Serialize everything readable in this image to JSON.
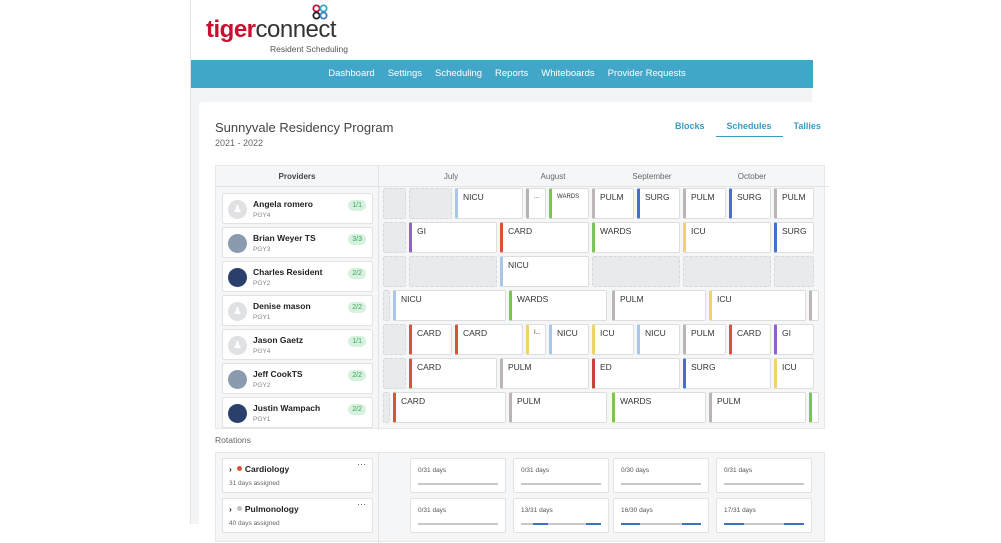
{
  "brand": {
    "name_a": "tiger",
    "name_b": "connect",
    "subtitle": "Resident Scheduling"
  },
  "nav": [
    "Dashboard",
    "Settings",
    "Scheduling",
    "Reports",
    "Whiteboards",
    "Provider Requests"
  ],
  "page": {
    "title": "Sunnyvale Residency Program",
    "years": "2021 - 2022"
  },
  "tabs": [
    {
      "label": "Blocks",
      "active": false
    },
    {
      "label": "Schedules",
      "active": true
    },
    {
      "label": "Tallies",
      "active": false
    }
  ],
  "schedule": {
    "providers_header": "Providers",
    "months": [
      "July",
      "August",
      "September",
      "October"
    ],
    "providers": [
      {
        "name": "Angela romero",
        "pgy": "PGY4",
        "badge": "1/1",
        "avatar": "placeholder"
      },
      {
        "name": "Brian Weyer TS",
        "pgy": "PGY3",
        "badge": "3/3",
        "avatar": "photo"
      },
      {
        "name": "Charles Resident",
        "pgy": "PGY2",
        "badge": "2/2",
        "avatar": "photo"
      },
      {
        "name": "Denise mason",
        "pgy": "PGY1",
        "badge": "2/2",
        "avatar": "placeholder"
      },
      {
        "name": "Jason Gaetz",
        "pgy": "PGY4",
        "badge": "1/1",
        "avatar": "placeholder"
      },
      {
        "name": "Jeff CookTS",
        "pgy": "PGY2",
        "badge": "2/2",
        "avatar": "photo"
      },
      {
        "name": "Justin Wampach",
        "pgy": "PGY1",
        "badge": "2/2",
        "avatar": "photo"
      }
    ],
    "rows": [
      [
        "",
        "",
        "NICU",
        "...",
        "WARDS",
        "PULM",
        "SURG",
        "PULM",
        "SURG",
        "PULM"
      ],
      [
        "",
        "GI",
        "CARD",
        "WARDS",
        "ICU",
        "SURG"
      ],
      [
        "",
        "",
        "NICU",
        "",
        "",
        ""
      ],
      [
        "",
        "NICU",
        "WARDS",
        "PULM",
        "ICU",
        ""
      ],
      [
        "",
        "CARD",
        "CARD",
        "I...",
        "NICU",
        "ICU",
        "NICU",
        "PULM",
        "CARD",
        "GI"
      ],
      [
        "",
        "CARD",
        "PULM",
        "ED",
        "SURG",
        "ICU"
      ],
      [
        "",
        "CARD",
        "PULM",
        "WARDS",
        "PULM",
        ""
      ]
    ],
    "trailing_colors": [
      null,
      null,
      null,
      "PULM",
      null,
      null,
      "WARDS"
    ]
  },
  "rotation_colors": {
    "NICU": "#a9c6e6",
    "...": "#b8b0b0",
    "WARDS": "#7ac555",
    "PULM": "#bdb5b5",
    "SURG": "#3f73cf",
    "GI": "#8e62c9",
    "CARD": "#d9533c",
    "ICU": "#f0d36a",
    "I...": "#f0d36a",
    "ED": "#c0443a"
  },
  "rotations": {
    "label": "Rotations",
    "items": [
      {
        "name": "Cardiology",
        "dot": "#e0503c",
        "assigned": "31 days assigned",
        "cells": [
          {
            "text": "0/31 days",
            "fill": 0
          },
          {
            "text": "0/31 days",
            "fill": 0
          },
          {
            "text": "0/30 days",
            "fill": 0
          },
          {
            "text": "0/31 days",
            "fill": 0
          }
        ]
      },
      {
        "name": "Pulmonology",
        "dot": "#c0c0c0",
        "assigned": "40 days assigned",
        "cells": [
          {
            "text": "0/31 days",
            "fill": 0
          },
          {
            "text": "13/31 days",
            "fill": 0.42
          },
          {
            "text": "16/30 days",
            "fill": 0.53
          },
          {
            "text": "17/31 days",
            "fill": 0.55
          }
        ]
      }
    ]
  }
}
